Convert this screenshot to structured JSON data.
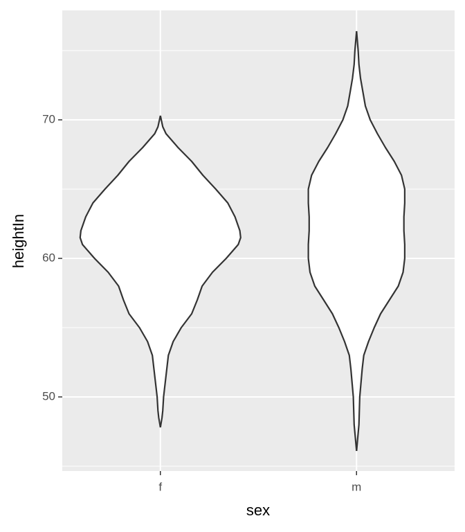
{
  "chart_data": {
    "type": "violin",
    "x_label": "sex",
    "y_label": "heightIn",
    "categories": [
      "f",
      "m"
    ],
    "violins": [
      {
        "y": [
          70.3,
          69.5,
          69,
          68,
          67,
          66,
          65,
          64,
          63,
          62,
          61.5,
          61,
          60,
          59,
          58,
          57,
          56,
          55,
          54,
          53,
          52,
          51,
          50,
          49,
          48.5,
          47.8
        ],
        "density": [
          0,
          0.03,
          0.07,
          0.22,
          0.39,
          0.53,
          0.69,
          0.84,
          0.93,
          0.99,
          1,
          0.97,
          0.82,
          0.65,
          0.52,
          0.46,
          0.39,
          0.26,
          0.16,
          0.1,
          0.08,
          0.06,
          0.04,
          0.03,
          0.02,
          0
        ]
      },
      {
        "y": [
          76.4,
          75,
          74,
          73,
          72,
          71,
          70,
          69,
          68,
          67,
          66,
          65,
          64,
          63,
          62,
          61,
          60,
          59,
          58,
          57,
          56,
          55,
          54,
          53,
          52,
          50,
          48,
          46.1
        ],
        "density": [
          0,
          0.02,
          0.03,
          0.05,
          0.08,
          0.11,
          0.17,
          0.26,
          0.36,
          0.47,
          0.56,
          0.6,
          0.6,
          0.59,
          0.59,
          0.6,
          0.6,
          0.58,
          0.52,
          0.41,
          0.3,
          0.22,
          0.15,
          0.09,
          0.07,
          0.04,
          0.03,
          0
        ]
      }
    ],
    "fill": "#ffffff",
    "outline": "#333333",
    "ylim": [
      44.65,
      77.9
    ],
    "yticks": [
      50,
      60,
      70
    ],
    "minor_yticks": [
      45,
      55,
      65,
      75
    ],
    "grid": true,
    "panel_color": "#ebebeb"
  }
}
